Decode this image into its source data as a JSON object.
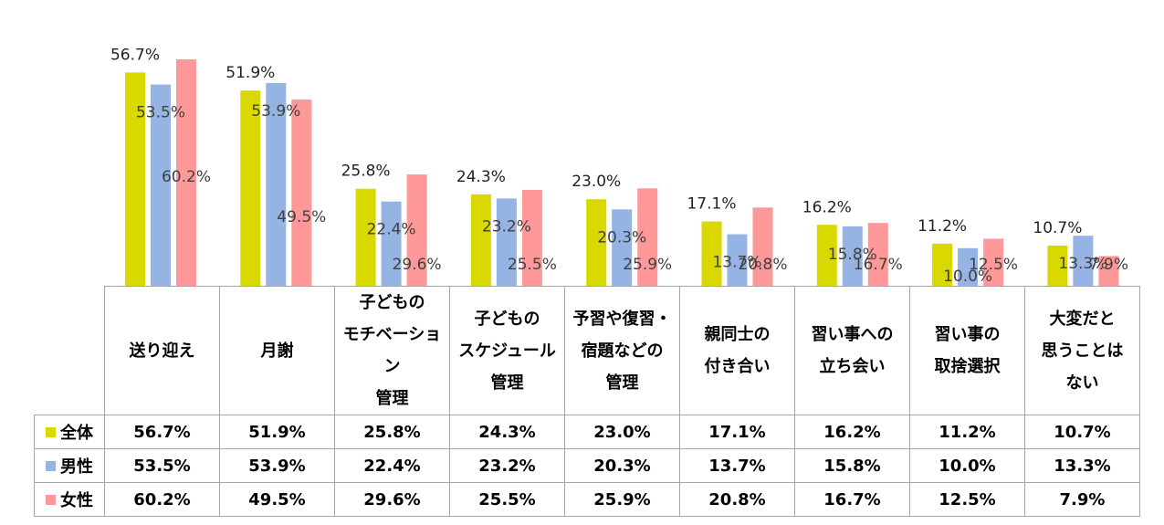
{
  "chart_data": {
    "type": "bar",
    "categories": [
      "送り迎え",
      "月謝",
      "子どもの\nモチベーション\n管理",
      "子どもの\nスケジュール\n管理",
      "予習や復習・\n宿題などの\n管理",
      "親同士の\n付き合い",
      "習い事への\n立ち会い",
      "習い事の\n取捨選択",
      "大変だと\n思うことは\nない"
    ],
    "series": [
      {
        "name": "全体",
        "color": "#d9d900",
        "values": [
          56.7,
          51.9,
          25.8,
          24.3,
          23.0,
          17.1,
          16.2,
          11.2,
          10.7
        ],
        "labels": [
          "56.7%",
          "51.9%",
          "25.8%",
          "24.3%",
          "23.0%",
          "17.1%",
          "16.2%",
          "11.2%",
          "10.7%"
        ]
      },
      {
        "name": "男性",
        "color": "#95b3e3",
        "values": [
          53.5,
          53.9,
          22.4,
          23.2,
          20.3,
          13.7,
          15.8,
          10.0,
          13.3
        ],
        "labels": [
          "53.5%",
          "53.9%",
          "22.4%",
          "23.2%",
          "20.3%",
          "13.7%",
          "15.8%",
          "10.0%",
          "13.3%"
        ]
      },
      {
        "name": "女性",
        "color": "#ff9999",
        "values": [
          60.2,
          49.5,
          29.6,
          25.5,
          25.9,
          20.8,
          16.7,
          12.5,
          7.9
        ],
        "labels": [
          "60.2%",
          "49.5%",
          "29.6%",
          "25.5%",
          "25.9%",
          "20.8%",
          "16.7%",
          "12.5%",
          "7.9%"
        ]
      }
    ],
    "ylim": [
      0,
      65
    ],
    "title": "",
    "xlabel": "",
    "ylabel": ""
  }
}
